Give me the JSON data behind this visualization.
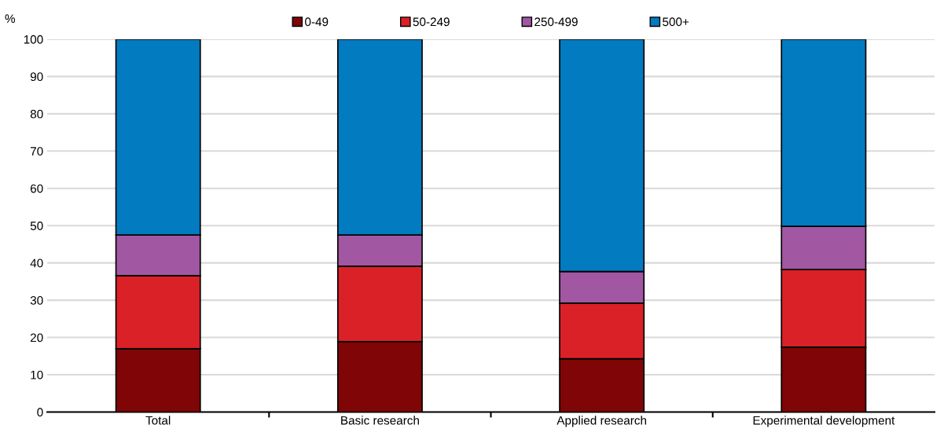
{
  "chart_data": {
    "type": "bar",
    "stacked": true,
    "ylabel": "%",
    "categories": [
      "Total",
      "Basic research",
      "Applied research",
      "Experimental development"
    ],
    "series": [
      {
        "name": "0-49",
        "color": "#7f0506",
        "values": [
          17.0,
          18.9,
          14.3,
          17.4
        ]
      },
      {
        "name": "50-249",
        "color": "#da2128",
        "values": [
          19.6,
          20.2,
          14.9,
          20.8
        ]
      },
      {
        "name": "250-499",
        "color": "#a157a1",
        "values": [
          10.9,
          8.4,
          8.5,
          11.6
        ]
      },
      {
        "name": "500+",
        "color": "#037bc1",
        "values": [
          52.5,
          52.5,
          62.3,
          50.2
        ]
      }
    ],
    "ylim": [
      0,
      100
    ],
    "yticks": [
      0,
      10,
      20,
      30,
      40,
      50,
      60,
      70,
      80,
      90,
      100
    ],
    "grid": "y",
    "legend": "top"
  }
}
